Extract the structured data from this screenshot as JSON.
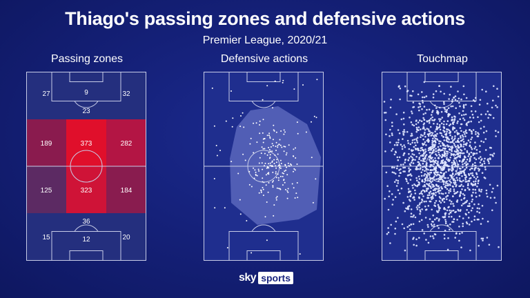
{
  "header": {
    "title": "Thiago's passing zones and defensive actions",
    "subtitle": "Premier League, 2020/21"
  },
  "panels": {
    "passing_zones": {
      "title": "Passing zones",
      "zones": [
        {
          "row": 0,
          "col": 0,
          "value": "27",
          "color": "#242f7e"
        },
        {
          "row": 0,
          "col": 1,
          "value": "9",
          "color": "#242f7e"
        },
        {
          "row": 0,
          "col": 2,
          "value": "32",
          "color": "#242f7e"
        },
        {
          "row": 1,
          "col": 0,
          "value": "189",
          "color": "#8a1b4e"
        },
        {
          "row": 1,
          "col": 1,
          "value": "373",
          "color": "#e00f2b"
        },
        {
          "row": 1,
          "col": 2,
          "value": "282",
          "color": "#b31544"
        },
        {
          "row": 2,
          "col": 0,
          "value": "125",
          "color": "#5c2a63"
        },
        {
          "row": 2,
          "col": 1,
          "value": "323",
          "color": "#cf1337"
        },
        {
          "row": 2,
          "col": 2,
          "value": "184",
          "color": "#891c4f"
        },
        {
          "row": 3,
          "col": 0,
          "value": "15",
          "color": "#242f7e"
        },
        {
          "row": 3,
          "col": 1,
          "value": "12",
          "color": "#242f7e"
        },
        {
          "row": 3,
          "col": 2,
          "value": "20",
          "color": "#242f7e"
        }
      ],
      "box_values": {
        "top": "23",
        "bottom": "36"
      }
    },
    "defensive_actions": {
      "title": "Defensive actions"
    },
    "touchmap": {
      "title": "Touchmap"
    }
  },
  "branding": {
    "sky": "sky",
    "sports": "sports"
  }
}
